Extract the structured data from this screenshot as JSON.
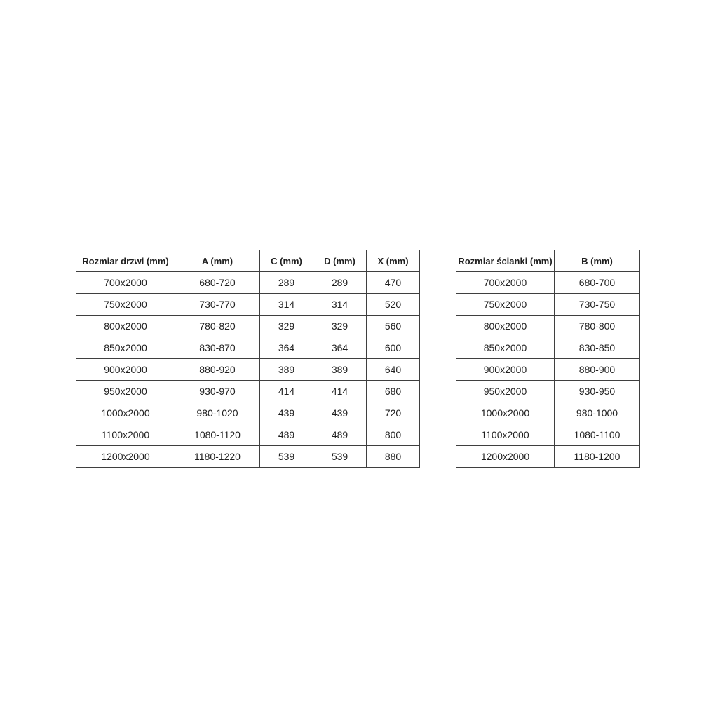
{
  "page": {
    "background_color": "#ffffff",
    "text_color": "#1f1f1f",
    "border_color": "#3f3f3f"
  },
  "door_table": {
    "title": "door-dimensions-table",
    "headers": [
      "Rozmiar drzwi (mm)",
      "A (mm)",
      "C (mm)",
      "D (mm)",
      "X (mm)"
    ],
    "rows": [
      [
        "700x2000",
        "680-720",
        "289",
        "289",
        "470"
      ],
      [
        "750x2000",
        "730-770",
        "314",
        "314",
        "520"
      ],
      [
        "800x2000",
        "780-820",
        "329",
        "329",
        "560"
      ],
      [
        "850x2000",
        "830-870",
        "364",
        "364",
        "600"
      ],
      [
        "900x2000",
        "880-920",
        "389",
        "389",
        "640"
      ],
      [
        "950x2000",
        "930-970",
        "414",
        "414",
        "680"
      ],
      [
        "1000x2000",
        "980-1020",
        "439",
        "439",
        "720"
      ],
      [
        "1100x2000",
        "1080-1120",
        "489",
        "489",
        "800"
      ],
      [
        "1200x2000",
        "1180-1220",
        "539",
        "539",
        "880"
      ]
    ]
  },
  "wall_table": {
    "title": "wall-dimensions-table",
    "headers": [
      "Rozmiar ścianki (mm)",
      "B (mm)"
    ],
    "rows": [
      [
        "700x2000",
        "680-700"
      ],
      [
        "750x2000",
        "730-750"
      ],
      [
        "800x2000",
        "780-800"
      ],
      [
        "850x2000",
        "830-850"
      ],
      [
        "900x2000",
        "880-900"
      ],
      [
        "950x2000",
        "930-950"
      ],
      [
        "1000x2000",
        "980-1000"
      ],
      [
        "1100x2000",
        "1080-1100"
      ],
      [
        "1200x2000",
        "1180-1200"
      ]
    ]
  }
}
